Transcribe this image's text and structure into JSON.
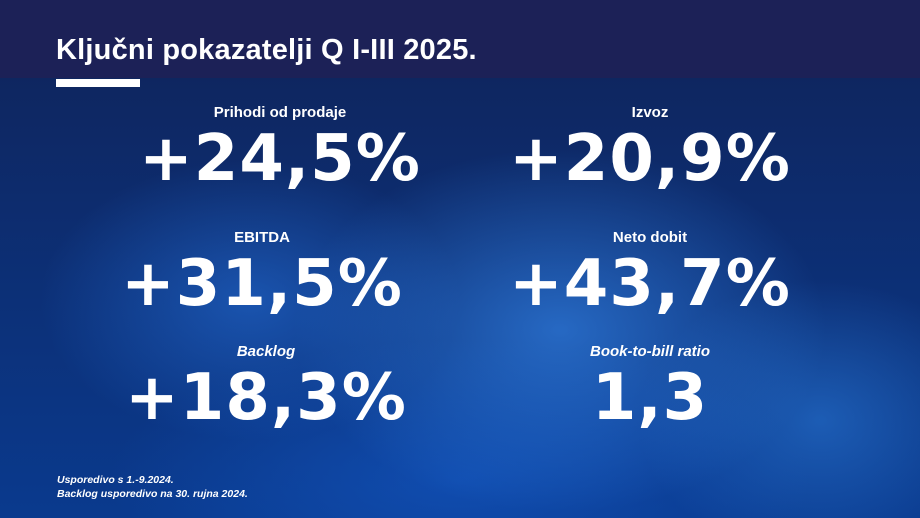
{
  "title": "Ključni pokazatelji Q I-III 2025.",
  "kpis": [
    {
      "label": "Prihodi od prodaje",
      "value": "+24,5%"
    },
    {
      "label": "Izvoz",
      "value": "+20,9%"
    },
    {
      "label": "EBITDA",
      "value": "+31,5%"
    },
    {
      "label": "Neto dobit",
      "value": "+43,7%"
    },
    {
      "label": "Backlog",
      "value": "+18,3%"
    },
    {
      "label": "Book-to-bill ratio",
      "value": "1,3"
    }
  ],
  "footnotes": [
    "Usporedivo s 1.-9.2024.",
    "Backlog usporedivo na 30. rujna 2024."
  ],
  "colors": {
    "header": "#1c2157",
    "background": "#0d2c6e",
    "text": "#ffffff"
  }
}
